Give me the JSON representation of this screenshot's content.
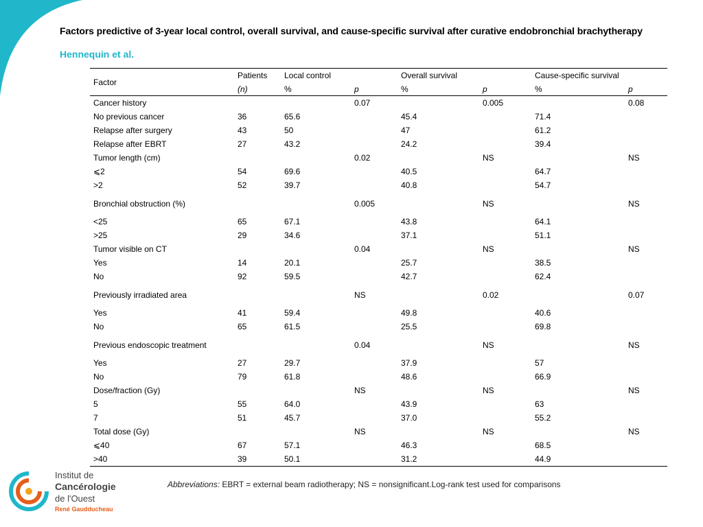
{
  "title": "Factors predictive of 3-year local control, overall survival, and cause-specific survival after curative endobronchial brachytherapy",
  "authors": "Hennequin et al.",
  "colors": {
    "accent": "#1fb7c9",
    "logo_orange": "#e55d1a"
  },
  "table": {
    "headers": {
      "factor": "Factor",
      "patients": "Patients",
      "patients_unit": "(n)",
      "local_control": "Local control",
      "overall_survival": "Overall survival",
      "cause_specific": "Cause-specific survival",
      "pct": "%",
      "p": "p"
    },
    "rows": [
      {
        "factor": "Cancer history",
        "n": "",
        "lc": "",
        "lc_p": "0.07",
        "lc_p_bold": true,
        "os": "",
        "os_p": "0.005",
        "os_p_bold": true,
        "cs": "",
        "cs_p": "0.08",
        "cs_p_bold": true,
        "group": true
      },
      {
        "factor": "No previous cancer",
        "n": "36",
        "lc": "65.6",
        "lc_p": "",
        "os": "45.4",
        "os_p": "",
        "cs": "71.4",
        "cs_p": ""
      },
      {
        "factor": "Relapse after surgery",
        "n": "43",
        "lc": "50",
        "lc_p": "",
        "os": "47",
        "os_p": "",
        "cs": "61.2",
        "cs_p": ""
      },
      {
        "factor": "Relapse after EBRT",
        "n": "27",
        "lc": "43.2",
        "lc_p": "",
        "os": "24.2",
        "os_p": "",
        "cs": "39.4",
        "cs_p": ""
      },
      {
        "factor": "Tumor length (cm)",
        "n": "",
        "lc": "",
        "lc_p": "0.02",
        "lc_p_bold": true,
        "os": "",
        "os_p": "NS",
        "cs": "",
        "cs_p": "NS",
        "group": true
      },
      {
        "factor": "⩽2",
        "n": "54",
        "lc": "69.6",
        "lc_p": "",
        "os": "40.5",
        "os_p": "",
        "cs": "64.7",
        "cs_p": ""
      },
      {
        "factor": ">2",
        "n": "52",
        "lc": "39.7",
        "lc_p": "",
        "os": "40.8",
        "os_p": "",
        "cs": "54.7",
        "cs_p": ""
      },
      {
        "factor": "Bronchial obstruction (%)",
        "n": "",
        "lc": "",
        "lc_p": "0.005",
        "lc_p_bold": true,
        "os": "",
        "os_p": "NS",
        "cs": "",
        "cs_p": "NS",
        "group": true,
        "tall": true
      },
      {
        "factor": "<25",
        "n": "65",
        "lc": "67.1",
        "lc_p": "",
        "os": "43.8",
        "os_p": "",
        "cs": "64.1",
        "cs_p": ""
      },
      {
        "factor": ">25",
        "n": "29",
        "lc": "34.6",
        "lc_p": "",
        "os": "37.1",
        "os_p": "",
        "cs": "51.1",
        "cs_p": ""
      },
      {
        "factor": "Tumor visible on CT",
        "n": "",
        "lc": "",
        "lc_p": "0.04",
        "lc_p_bold": true,
        "os": "",
        "os_p": "NS",
        "cs": "",
        "cs_p": "NS",
        "group": true
      },
      {
        "factor": "Yes",
        "n": "14",
        "lc": "20.1",
        "lc_p": "",
        "os": "25.7",
        "os_p": "",
        "cs": "38.5",
        "cs_p": ""
      },
      {
        "factor": "No",
        "n": "92",
        "lc": "59.5",
        "lc_p": "",
        "os": "42.7",
        "os_p": "",
        "cs": "62.4",
        "cs_p": ""
      },
      {
        "factor": "Previously irradiated area",
        "n": "",
        "lc": "",
        "lc_p": "NS",
        "os": "",
        "os_p": "0.02",
        "os_p_bold": true,
        "cs": "",
        "cs_p": "0.07",
        "cs_p_bold": true,
        "group": true,
        "tall": true
      },
      {
        "factor": "Yes",
        "n": "41",
        "lc": "59.4",
        "lc_p": "",
        "os": "49.8",
        "os_p": "",
        "cs": "40.6",
        "cs_p": ""
      },
      {
        "factor": "No",
        "n": "65",
        "lc": "61.5",
        "lc_p": "",
        "os": "25.5",
        "os_p": "",
        "cs": "69.8",
        "cs_p": ""
      },
      {
        "factor": "Previous endoscopic treatment",
        "n": "",
        "lc": "",
        "lc_p": "0.04",
        "lc_p_bold": true,
        "os": "",
        "os_p": "NS",
        "cs": "",
        "cs_p": "NS",
        "group": true,
        "tall": true
      },
      {
        "factor": "Yes",
        "n": "27",
        "lc": "29.7",
        "lc_p": "",
        "os": "37.9",
        "os_p": "",
        "cs": "57",
        "cs_p": ""
      },
      {
        "factor": "No",
        "n": "79",
        "lc": "61.8",
        "lc_p": "",
        "os": "48.6",
        "os_p": "",
        "cs": "66.9",
        "cs_p": ""
      },
      {
        "factor": "Dose/fraction (Gy)",
        "n": "",
        "lc": "",
        "lc_p": "NS",
        "os": "",
        "os_p": "NS",
        "cs": "",
        "cs_p": "NS",
        "group": true
      },
      {
        "factor": "5",
        "n": "55",
        "lc": "64.0",
        "lc_p": "",
        "os": "43.9",
        "os_p": "",
        "cs": "63",
        "cs_p": ""
      },
      {
        "factor": "7",
        "n": "51",
        "lc": "45.7",
        "lc_p": "",
        "os": "37.0",
        "os_p": "",
        "cs": "55.2",
        "cs_p": ""
      },
      {
        "factor": "Total dose (Gy)",
        "n": "",
        "lc": "",
        "lc_p": "NS",
        "os": "",
        "os_p": "NS",
        "cs": "",
        "cs_p": "NS",
        "group": true
      },
      {
        "factor": "⩽40",
        "n": "67",
        "lc": "57.1",
        "lc_p": "",
        "os": "46.3",
        "os_p": "",
        "cs": "68.5",
        "cs_p": ""
      },
      {
        "factor": ">40",
        "n": "39",
        "lc": "50.1",
        "lc_p": "",
        "os": "31.2",
        "os_p": "",
        "cs": "44.9",
        "cs_p": ""
      }
    ]
  },
  "footnote": {
    "label": "Abbreviations:",
    "text": " EBRT = external beam radiotherapy; NS = nonsignificant.Log-rank test used for comparisons"
  },
  "logo": {
    "line1": "Institut de",
    "line2": "Cancérologie",
    "line3": "de l'Ouest",
    "tagline": "René Gaudducheau"
  }
}
